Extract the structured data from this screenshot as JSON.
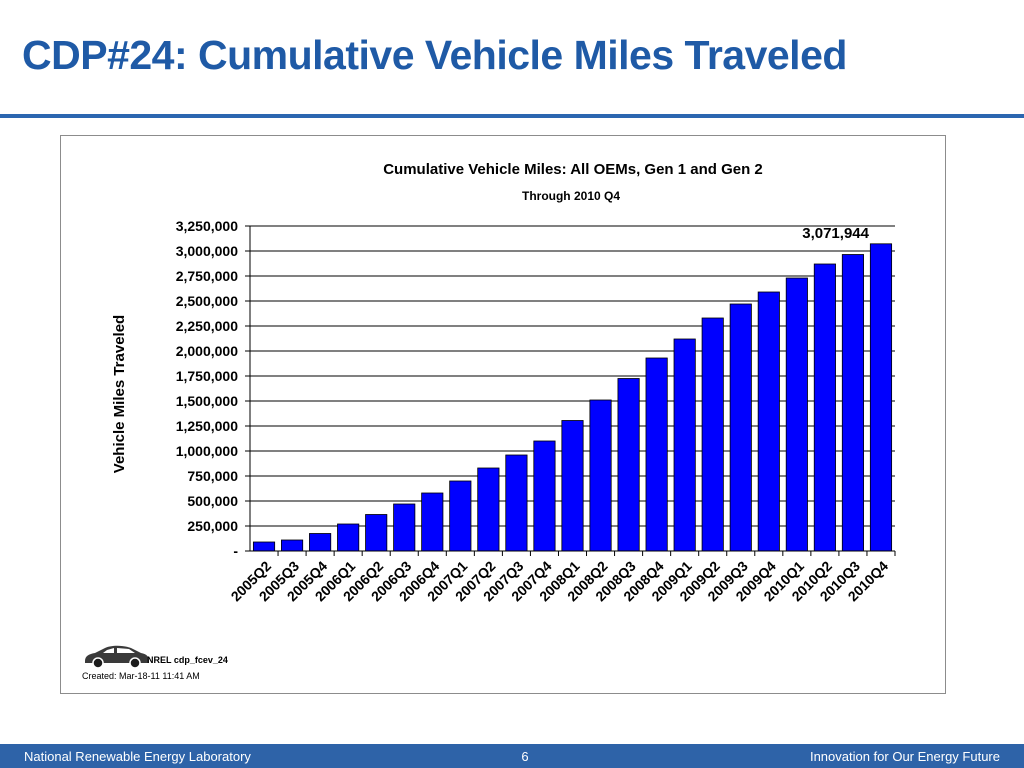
{
  "slide": {
    "title": "CDP#24: Cumulative Vehicle Miles Traveled"
  },
  "footer": {
    "left": "National Renewable Energy Laboratory",
    "center": "6",
    "right": "Innovation for Our Energy Future"
  },
  "chart_meta": {
    "code": "NREL cdp_fcev_24",
    "created": "Created: Mar-18-11 11:41 AM",
    "logo_icon": "car-icon"
  },
  "chart_data": {
    "type": "bar",
    "title": "Cumulative Vehicle Miles: All OEMs, Gen 1 and Gen 2",
    "subtitle": "Through 2010 Q4",
    "xlabel": "",
    "ylabel": "Vehicle Miles Traveled",
    "ylim": [
      0,
      3250000
    ],
    "yticks": [
      0,
      250000,
      500000,
      750000,
      1000000,
      1250000,
      1500000,
      1750000,
      2000000,
      2250000,
      2500000,
      2750000,
      3000000,
      3250000
    ],
    "ytick_labels": [
      "-",
      "250,000",
      "500,000",
      "750,000",
      "1,000,000",
      "1,250,000",
      "1,500,000",
      "1,750,000",
      "2,000,000",
      "2,250,000",
      "2,500,000",
      "2,750,000",
      "3,000,000",
      "3,250,000"
    ],
    "grid": true,
    "legend": "none",
    "bar_color": "#0000ff",
    "categories": [
      "2005Q2",
      "2005Q3",
      "2005Q4",
      "2006Q1",
      "2006Q2",
      "2006Q3",
      "2006Q4",
      "2007Q1",
      "2007Q2",
      "2007Q3",
      "2007Q4",
      "2008Q1",
      "2008Q2",
      "2008Q3",
      "2008Q4",
      "2009Q1",
      "2009Q2",
      "2009Q3",
      "2009Q4",
      "2010Q1",
      "2010Q2",
      "2010Q3",
      "2010Q4"
    ],
    "values": [
      90000,
      110000,
      175000,
      270000,
      365000,
      470000,
      580000,
      700000,
      830000,
      960000,
      1100000,
      1305000,
      1510000,
      1725000,
      1930000,
      2120000,
      2330000,
      2470000,
      2590000,
      2730000,
      2870000,
      2965000,
      3071944
    ],
    "annotations": [
      {
        "category": "2010Q4",
        "text": "3,071,944"
      }
    ]
  }
}
